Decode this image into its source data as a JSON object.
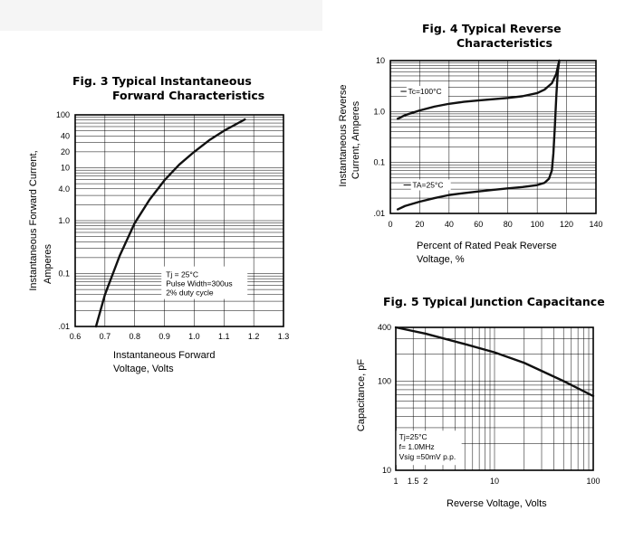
{
  "chart_data": [
    {
      "id": "fig3",
      "type": "line",
      "title": "Fig. 3 Typical Instantaneous",
      "title_line2": "Forward Characteristics",
      "xlabel": "Instantaneous Forward",
      "xlabel_line2": "Voltage, Volts",
      "ylabel": "Instantaneous Forward Current,",
      "ylabel_line2": "Amperes",
      "xlim": [
        0.6,
        1.3
      ],
      "ylim": [
        0.01,
        100
      ],
      "yscale": "log",
      "x_ticks": [
        "0.6",
        "0.7",
        "0.8",
        "0.9",
        "1.0",
        "1.1",
        "1.2",
        "1.3"
      ],
      "y_ticks": [
        {
          "v": 100,
          "label": "100"
        },
        {
          "v": 40,
          "label": "40"
        },
        {
          "v": 20,
          "label": "20"
        },
        {
          "v": 10,
          "label": "10"
        },
        {
          "v": 4,
          "label": "4.0"
        },
        {
          "v": 1,
          "label": "1.0"
        },
        {
          "v": 0.1,
          "label": "0.1"
        },
        {
          "v": 0.01,
          "label": ".01"
        }
      ],
      "grid": true,
      "annotation": [
        "Tj = 25°C",
        "Pulse Width=300us",
        "2% duty cycle"
      ],
      "series": [
        {
          "x": [
            0.67,
            0.7,
            0.75,
            0.8,
            0.85,
            0.9,
            0.95,
            1.0,
            1.05,
            1.1,
            1.17
          ],
          "y": [
            0.01,
            0.04,
            0.22,
            0.9,
            2.5,
            5.8,
            11.5,
            20,
            33,
            50,
            82
          ]
        }
      ]
    },
    {
      "id": "fig4",
      "type": "line",
      "title": "Fig. 4 Typical Reverse",
      "title_line2": "Characteristics",
      "xlabel": "Percent of Rated Peak Reverse",
      "xlabel_line2": "Voltage, %",
      "ylabel": "Instantaneous Reverse",
      "ylabel_line2": "Current, Amperes",
      "xlim": [
        0,
        140
      ],
      "ylim": [
        0.01,
        10
      ],
      "yscale": "log",
      "x_ticks": [
        "0",
        "20",
        "40",
        "60",
        "80",
        "100",
        "120",
        "140"
      ],
      "y_ticks": [
        {
          "v": 10,
          "label": "10"
        },
        {
          "v": 1,
          "label": "1.0"
        },
        {
          "v": 0.1,
          "label": "0.1"
        },
        {
          "v": 0.01,
          "label": ".01"
        }
      ],
      "grid": true,
      "series": [
        {
          "name": "Tc=100°C",
          "x": [
            5,
            10,
            20,
            30,
            40,
            50,
            60,
            70,
            80,
            90,
            100,
            105,
            110,
            113,
            114,
            115
          ],
          "y": [
            0.72,
            0.85,
            1.05,
            1.25,
            1.42,
            1.55,
            1.65,
            1.75,
            1.85,
            2.0,
            2.3,
            2.7,
            3.6,
            5.5,
            7.5,
            10
          ]
        },
        {
          "name": "TA=25°C",
          "x": [
            5,
            10,
            20,
            30,
            40,
            50,
            60,
            70,
            80,
            90,
            100,
            105,
            108,
            110,
            111,
            112,
            113,
            114,
            115
          ],
          "y": [
            0.012,
            0.014,
            0.017,
            0.02,
            0.023,
            0.025,
            0.027,
            0.029,
            0.031,
            0.033,
            0.036,
            0.04,
            0.048,
            0.07,
            0.15,
            0.5,
            2,
            6,
            10
          ]
        }
      ]
    },
    {
      "id": "fig5",
      "type": "line",
      "title": "Fig. 5 Typical Junction Capacitance",
      "xlabel": "Reverse Voltage, Volts",
      "ylabel": "Capacitance, pF",
      "xlim": [
        1,
        100
      ],
      "ylim": [
        10,
        400
      ],
      "xscale": "log",
      "yscale": "log",
      "x_ticks": [
        {
          "v": 1,
          "label": "1"
        },
        {
          "v": 1.5,
          "label": "1.5"
        },
        {
          "v": 2,
          "label": "2"
        },
        {
          "v": 10,
          "label": "10"
        },
        {
          "v": 100,
          "label": "100"
        }
      ],
      "y_ticks": [
        {
          "v": 400,
          "label": "400"
        },
        {
          "v": 100,
          "label": "100"
        },
        {
          "v": 10,
          "label": "10"
        }
      ],
      "grid": true,
      "annotation": [
        "Tj=25°C",
        "f= 1.0MHz",
        "Vsig =50mV p.p."
      ],
      "series": [
        {
          "x": [
            1,
            2,
            5,
            10,
            20,
            50,
            100
          ],
          "y": [
            400,
            340,
            260,
            210,
            160,
            100,
            68
          ]
        }
      ]
    }
  ]
}
